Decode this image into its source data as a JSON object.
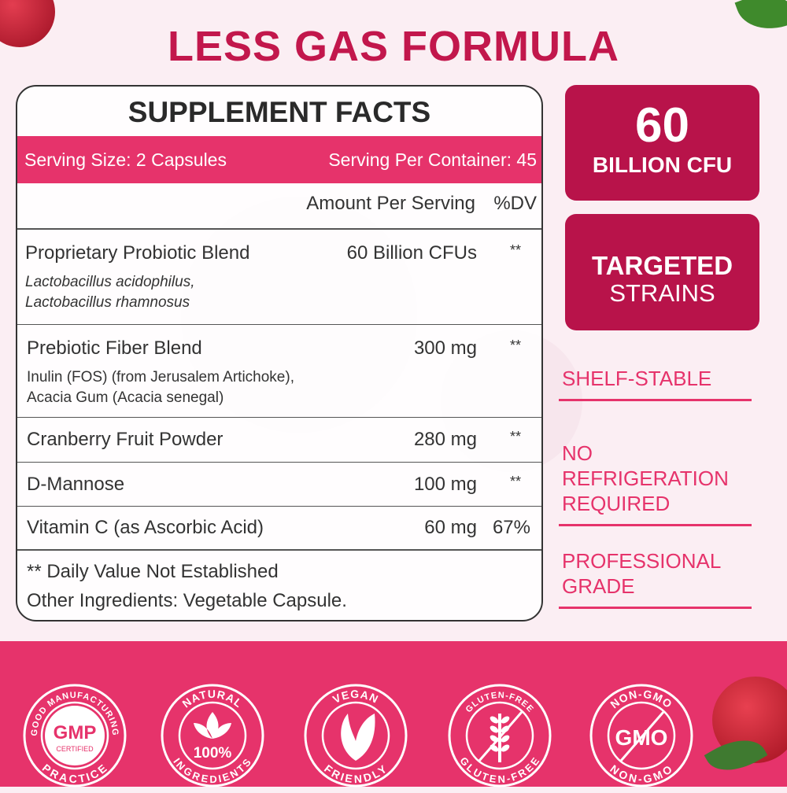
{
  "title": "LESS GAS FORMULA",
  "facts": {
    "heading": "SUPPLEMENT FACTS",
    "serving_size": "Serving Size: 2 Capsules",
    "servings_per_container": "Serving Per Container: 45",
    "col_amount": "Amount Per Serving",
    "col_dv": "%DV",
    "rows": [
      {
        "name": "Proprietary Probiotic Blend",
        "amount": "60 Billion CFUs",
        "dv": "**",
        "sub1": "Lactobacillus acidophilus,",
        "sub2": "Lactobacillus rhamnosus"
      },
      {
        "name": "Prebiotic Fiber Blend",
        "amount": "300 mg",
        "dv": "**",
        "sub1": "Inulin (FOS) (from Jerusalem Artichoke),",
        "sub2": "Acacia Gum (Acacia senegal)"
      },
      {
        "name": "Cranberry Fruit Powder",
        "amount": "280 mg",
        "dv": "**"
      },
      {
        "name": "D-Mannose",
        "amount": "100 mg",
        "dv": "**"
      },
      {
        "name": "Vitamin C (as Ascorbic Acid)",
        "amount": "60 mg",
        "dv": "67%"
      }
    ],
    "footnote": "** Daily Value Not Established",
    "other": "Other Ingredients: Vegetable Capsule."
  },
  "boxes": [
    {
      "big": "60",
      "small": "BILLION CFU"
    },
    {
      "big": "TARGETED",
      "small": "STRAINS"
    }
  ],
  "tags": [
    {
      "l1": "SHELF-STABLE"
    },
    {
      "l1": "NO REFRIGERATION",
      "l2": "REQUIRED"
    },
    {
      "l1": "PROFESSIONAL",
      "l2": "GRADE"
    }
  ],
  "badges": [
    {
      "icon": "gmp-icon",
      "top": "GOOD MANUFACTURING",
      "bottom": "PRACTICE",
      "center": "GMP",
      "center2": "CERTIFIED"
    },
    {
      "icon": "leaf-icon",
      "top": "NATURAL",
      "bottom": "INGREDIENTS",
      "center": "100%"
    },
    {
      "icon": "vegan-leaf-icon",
      "top": "VEGAN",
      "bottom": "FRIENDLY"
    },
    {
      "icon": "wheat-crossed-icon",
      "top": "GLUTEN-FREE",
      "bottom": "GLUTEN-FREE"
    },
    {
      "icon": "gmo-crossed-icon",
      "top": "NON-GMO",
      "bottom": "NON-GMO",
      "center": "GMO"
    }
  ],
  "colors": {
    "accent": "#e6336b",
    "title": "#c2174c",
    "box": "#b8134a"
  }
}
